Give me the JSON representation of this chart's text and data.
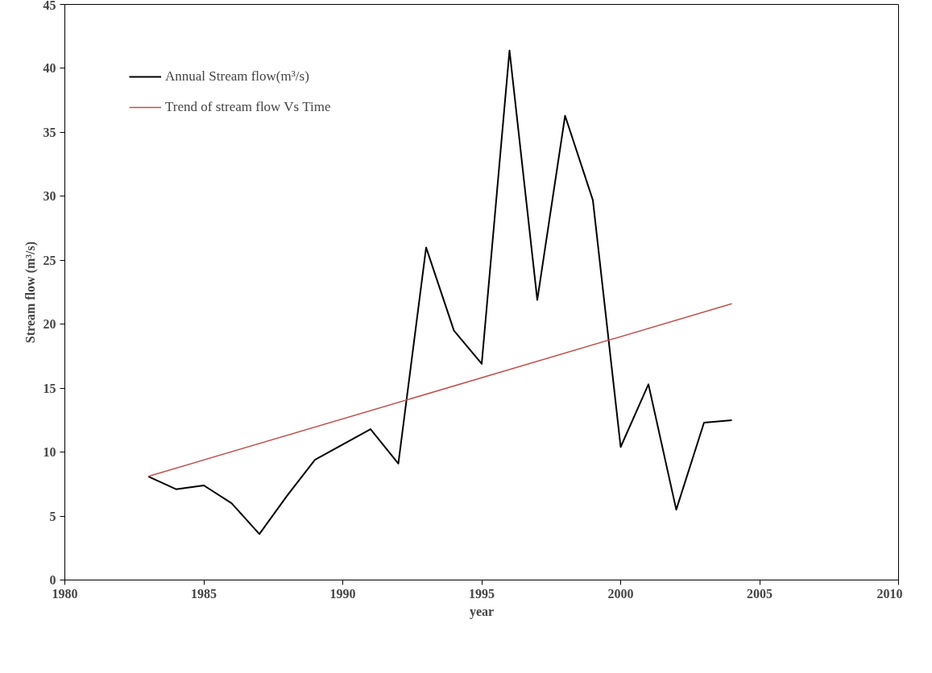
{
  "chart_data": {
    "type": "line",
    "xlabel": "year",
    "ylabel": "Stream flow (m³/s)",
    "x": [
      1983,
      1984,
      1985,
      1986,
      1987,
      1988,
      1989,
      1990,
      1991,
      1992,
      1993,
      1994,
      1995,
      1996,
      1997,
      1998,
      1999,
      2000,
      2001,
      2002,
      2003,
      2004
    ],
    "series": [
      {
        "name": "Annual Stream flow(m³/s)",
        "color": "#000000",
        "values": [
          8.1,
          7.1,
          7.4,
          6.0,
          3.6,
          6.6,
          9.4,
          10.6,
          11.8,
          9.1,
          26.0,
          19.5,
          16.9,
          41.4,
          21.9,
          36.3,
          29.7,
          10.4,
          15.3,
          5.5,
          12.3,
          12.5
        ]
      },
      {
        "name": "Trend of stream flow Vs Time",
        "color": "#c0504d",
        "type": "line",
        "x": [
          1983,
          2004
        ],
        "values": [
          8.1,
          21.6
        ]
      }
    ],
    "xlim": [
      1980,
      2010
    ],
    "xticks": [
      1980,
      1985,
      1990,
      1995,
      2000,
      2005,
      2010
    ],
    "ylim": [
      0,
      45
    ],
    "yticks": [
      0,
      5,
      10,
      15,
      20,
      25,
      30,
      35,
      40,
      45
    ],
    "grid": false,
    "legend": "top left",
    "marker": "none",
    "line_style": "solid"
  }
}
